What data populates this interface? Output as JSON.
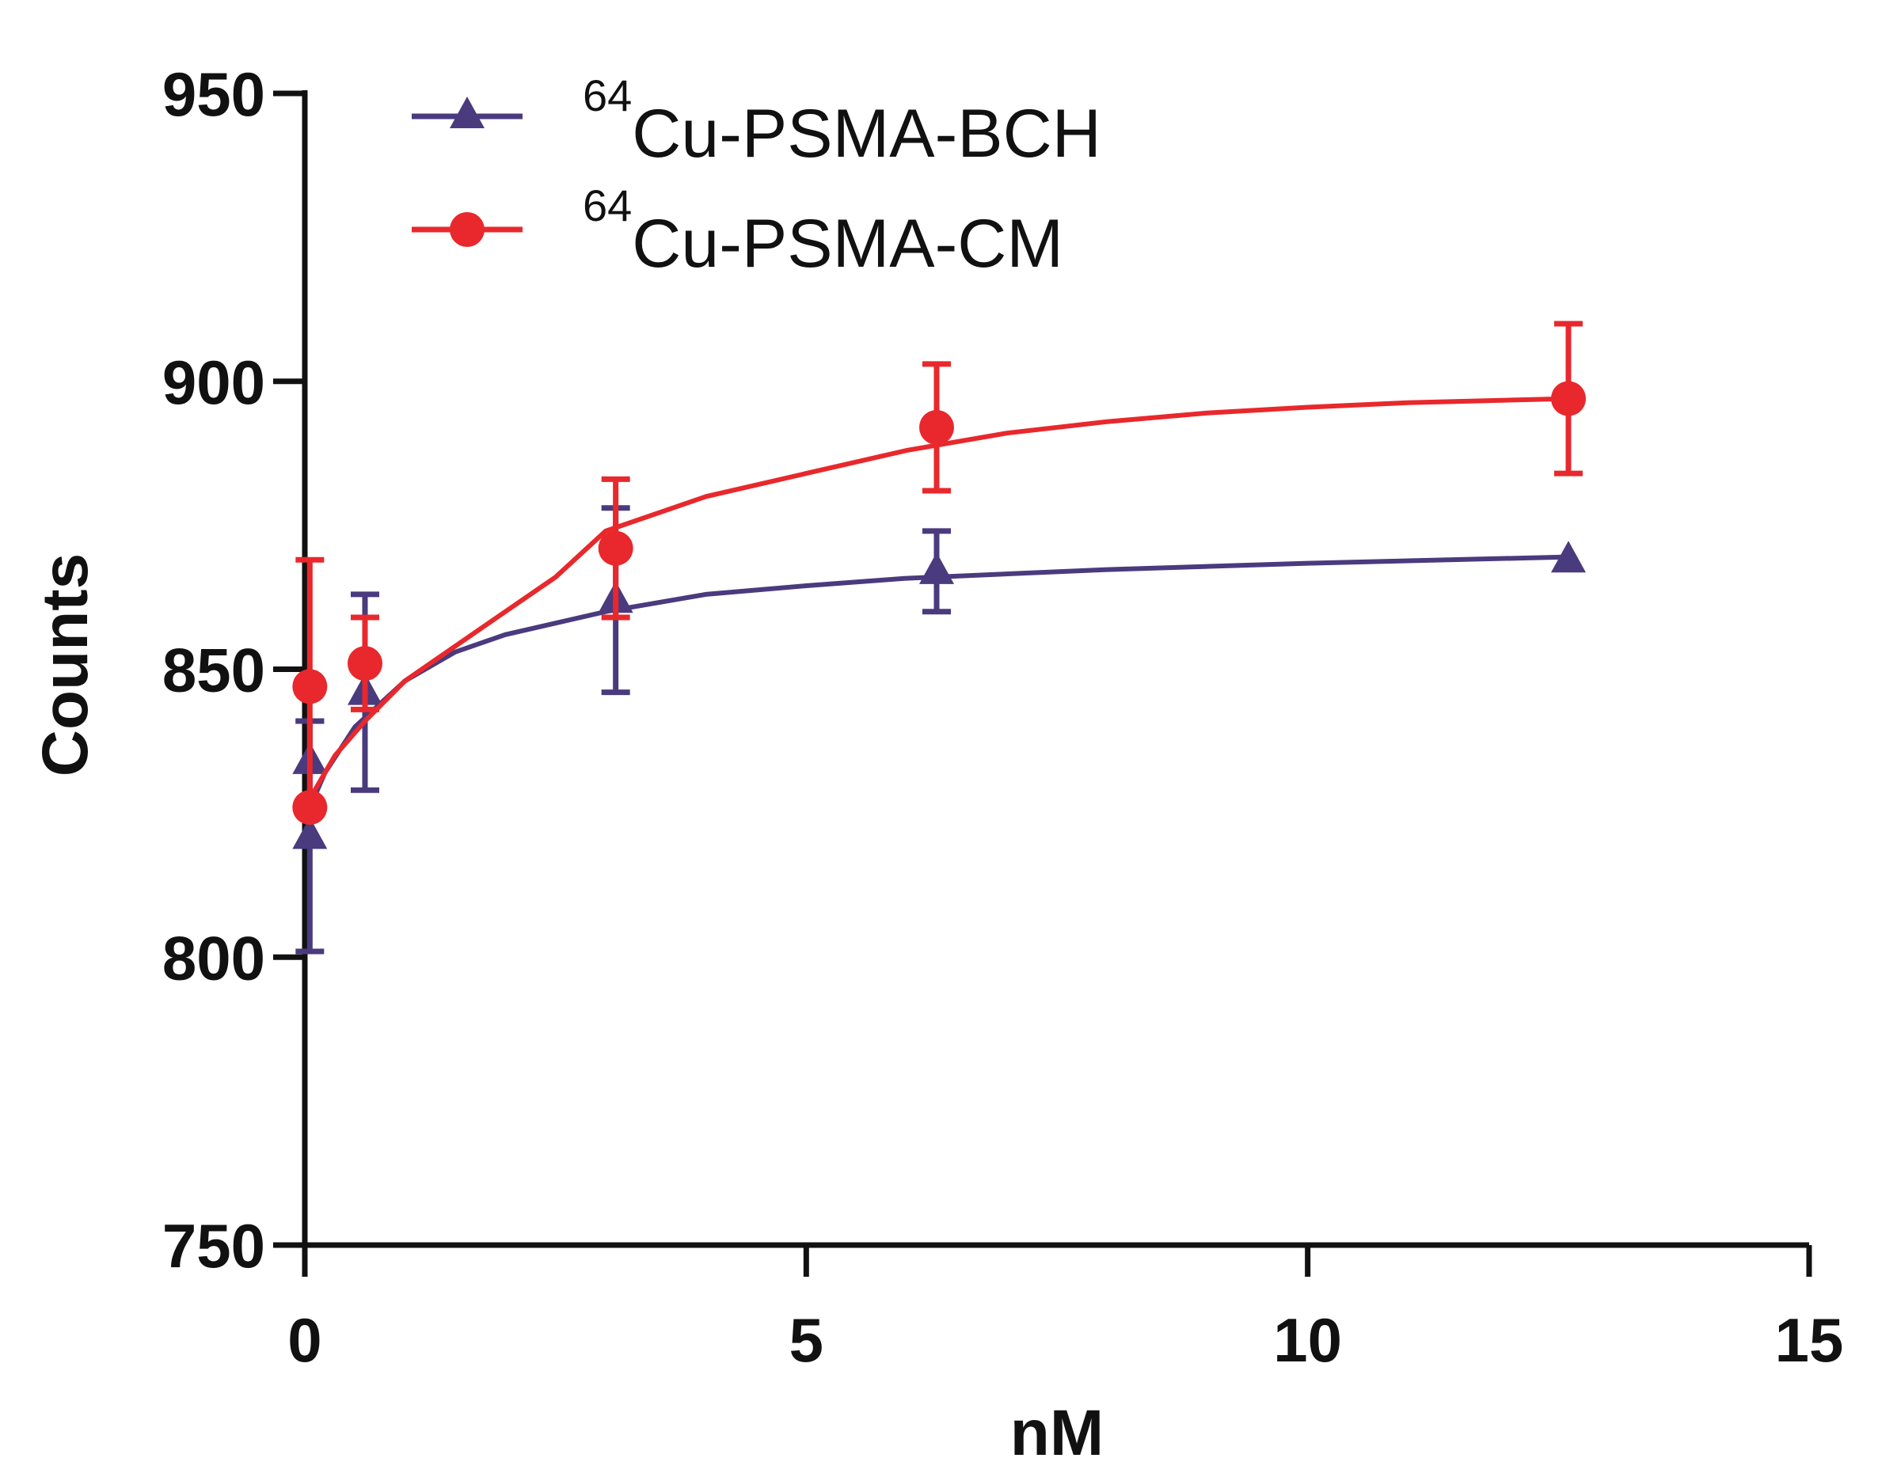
{
  "chart_data": {
    "type": "scatter",
    "xlabel": "nM",
    "ylabel": "Counts",
    "xlim": [
      0,
      15
    ],
    "ylim": [
      750,
      950
    ],
    "xticks": [
      "0",
      "5",
      "10",
      "15"
    ],
    "yticks": [
      "750",
      "800",
      "850",
      "900",
      "950"
    ],
    "legend_position": "top-left",
    "series": [
      {
        "name": "Cu-PSMA-BCH",
        "isotope": "64",
        "color": "#4a3a7e",
        "marker": "triangle",
        "x": [
          0.05,
          0.05,
          0.6,
          3.1,
          6.3,
          12.6
        ],
        "y": [
          821,
          834,
          846,
          862,
          867,
          869
        ],
        "err": [
          20,
          7,
          17,
          16,
          7,
          0
        ],
        "fit": [
          [
            0,
            824
          ],
          [
            0.2,
            832
          ],
          [
            0.5,
            840
          ],
          [
            1.0,
            848
          ],
          [
            1.5,
            853
          ],
          [
            2.0,
            856
          ],
          [
            3.0,
            860
          ],
          [
            4.0,
            863
          ],
          [
            5.0,
            864.5
          ],
          [
            6.0,
            865.8
          ],
          [
            8.0,
            867.3
          ],
          [
            10.0,
            868.4
          ],
          [
            12.6,
            869.5
          ]
        ]
      },
      {
        "name": "Cu-PSMA-CM",
        "isotope": "64",
        "color": "#e8282c",
        "marker": "circle",
        "x": [
          0.05,
          0.05,
          0.6,
          3.1,
          6.3,
          12.6
        ],
        "y": [
          826,
          847,
          851,
          871,
          892,
          897
        ],
        "err": [
          0,
          22,
          8,
          12,
          11,
          13
        ],
        "fit": [
          [
            0,
            826
          ],
          [
            0.3,
            835
          ],
          [
            0.6,
            841
          ],
          [
            1.0,
            848
          ],
          [
            1.5,
            854
          ],
          [
            2.0,
            860
          ],
          [
            2.5,
            866
          ],
          [
            3.0,
            874
          ],
          [
            4.0,
            880
          ],
          [
            5.0,
            884
          ],
          [
            6.0,
            888
          ],
          [
            7.0,
            891
          ],
          [
            8.0,
            893
          ],
          [
            9.0,
            894.5
          ],
          [
            10.0,
            895.5
          ],
          [
            11.0,
            896.3
          ],
          [
            12.6,
            897
          ]
        ]
      }
    ]
  }
}
